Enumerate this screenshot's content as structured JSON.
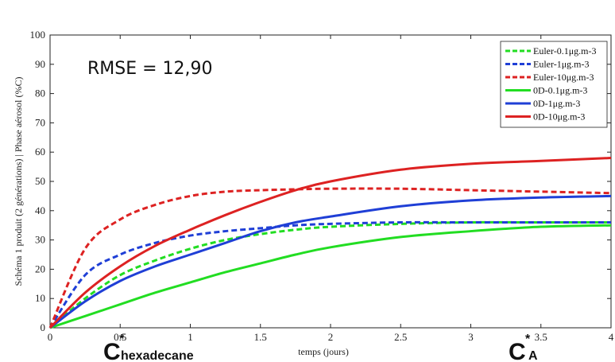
{
  "chart_data": {
    "type": "line",
    "title": "",
    "xlabel": "temps (jours)",
    "ylabel": "Schéma 1 produit (2 générations) | Phase aérosol (%C)",
    "xlim": [
      0,
      4
    ],
    "ylim": [
      0,
      100
    ],
    "xticks": [
      "0",
      "0.5",
      "1",
      "1.5",
      "2",
      "2.5",
      "3",
      "3.5",
      "4"
    ],
    "yticks": [
      "0",
      "10",
      "20",
      "30",
      "40",
      "50",
      "60",
      "70",
      "80",
      "90",
      "100"
    ],
    "grid": false,
    "legend_position": "top-right",
    "annotation": "RMSE = 12,90",
    "overlay_labels": [
      {
        "main": "C",
        "sup": "*",
        "sub": "hexadecane"
      },
      {
        "main": "C",
        "sup": "*",
        "sub": "A"
      }
    ],
    "series": [
      {
        "name": "Euler-0.1μg.m-3",
        "color": "#22dd22",
        "style": "dashed",
        "x": [
          0,
          0.25,
          0.5,
          0.75,
          1,
          1.25,
          1.5,
          1.75,
          2,
          2.5,
          3,
          3.5,
          4
        ],
        "y": [
          0,
          10,
          18,
          23,
          27,
          30,
          32,
          33.5,
          34.5,
          35.5,
          36,
          36,
          36
        ]
      },
      {
        "name": "Euler-1μg.m-3",
        "color": "#1f3fd6",
        "style": "dashed",
        "x": [
          0,
          0.25,
          0.5,
          0.75,
          1,
          1.25,
          1.5,
          1.75,
          2,
          2.5,
          3,
          3.5,
          4
        ],
        "y": [
          0,
          18,
          25,
          29,
          31.5,
          33,
          34,
          35,
          35.5,
          36,
          36,
          36,
          36
        ]
      },
      {
        "name": "Euler-10μg.m-3",
        "color": "#dd2222",
        "style": "dashed",
        "x": [
          0,
          0.25,
          0.5,
          0.75,
          1,
          1.25,
          1.5,
          1.75,
          2,
          2.5,
          3,
          3.5,
          4
        ],
        "y": [
          0,
          27,
          37,
          42,
          45,
          46.5,
          47,
          47.3,
          47.5,
          47.5,
          47,
          46.5,
          46
        ]
      },
      {
        "name": "0D-0.1μg.m-3",
        "color": "#22dd22",
        "style": "solid",
        "x": [
          0,
          0.25,
          0.5,
          0.75,
          1,
          1.25,
          1.5,
          1.75,
          2,
          2.5,
          3,
          3.5,
          4
        ],
        "y": [
          0,
          4,
          8,
          12,
          15.5,
          19,
          22,
          25,
          27.5,
          31,
          33,
          34.5,
          35
        ]
      },
      {
        "name": "0D-1μg.m-3",
        "color": "#1f3fd6",
        "style": "solid",
        "x": [
          0,
          0.25,
          0.5,
          0.75,
          1,
          1.25,
          1.5,
          1.75,
          2,
          2.5,
          3,
          3.5,
          4
        ],
        "y": [
          0,
          9,
          16,
          21,
          25,
          29,
          33,
          36,
          38,
          41.5,
          43.5,
          44.5,
          45
        ]
      },
      {
        "name": "0D-10μg.m-3",
        "color": "#dd2222",
        "style": "solid",
        "x": [
          0,
          0.25,
          0.5,
          0.75,
          1,
          1.25,
          1.5,
          1.75,
          2,
          2.5,
          3,
          3.5,
          4
        ],
        "y": [
          0,
          12,
          21,
          28,
          33.5,
          38.5,
          43,
          47,
          50,
          54,
          56,
          57,
          58
        ]
      }
    ]
  }
}
